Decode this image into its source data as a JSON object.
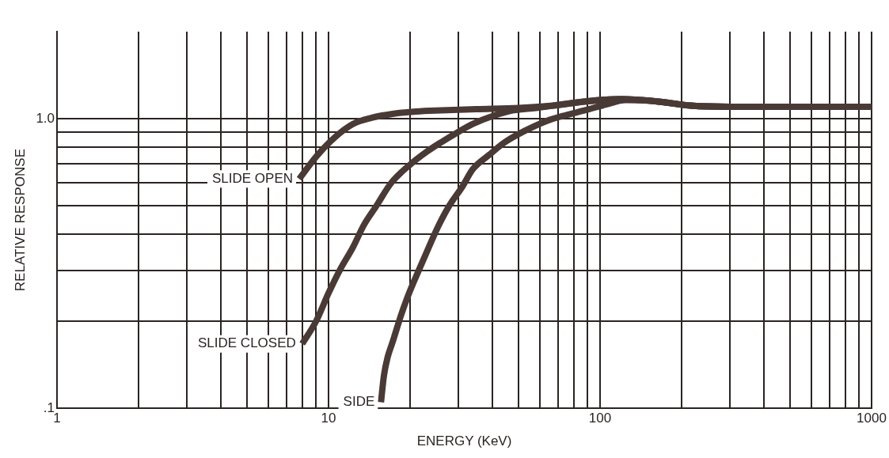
{
  "chart_data": {
    "type": "line",
    "xlabel": "ENERGY (KeV)",
    "ylabel": "RELATIVE RESPONSE",
    "log": "xy",
    "grid": true,
    "legend": false,
    "marker": "none",
    "line_style": "solid",
    "xlim": [
      1,
      1000
    ],
    "ylim": [
      0.1,
      2
    ],
    "xticks": [
      1,
      {
        "value": 2,
        "label": null
      },
      {
        "value": 3,
        "label": null
      },
      {
        "value": 4,
        "label": null
      },
      {
        "value": 5,
        "label": null
      },
      {
        "value": 6,
        "label": null
      },
      {
        "value": 7,
        "label": null
      },
      {
        "value": 8,
        "label": null
      },
      {
        "value": 9,
        "label": null
      },
      10,
      {
        "value": 20,
        "label": null
      },
      {
        "value": 30,
        "label": null
      },
      {
        "value": 40,
        "label": null
      },
      {
        "value": 50,
        "label": null
      },
      {
        "value": 60,
        "label": null
      },
      {
        "value": 70,
        "label": null
      },
      {
        "value": 80,
        "label": null
      },
      {
        "value": 90,
        "label": null
      },
      100,
      {
        "value": 200,
        "label": null
      },
      {
        "value": 300,
        "label": null
      },
      {
        "value": 400,
        "label": null
      },
      {
        "value": 500,
        "label": null
      },
      {
        "value": 600,
        "label": null
      },
      {
        "value": 700,
        "label": null
      },
      {
        "value": 800,
        "label": null
      },
      {
        "value": 900,
        "label": null
      },
      1000
    ],
    "yticks": [
      {
        "value": 0.1,
        "label": ".1"
      },
      {
        "value": 0.2,
        "label": null
      },
      {
        "value": 0.3,
        "label": null
      },
      {
        "value": 0.4,
        "label": null
      },
      {
        "value": 0.5,
        "label": null
      },
      {
        "value": 0.6,
        "label": null
      },
      {
        "value": 0.7,
        "label": null
      },
      {
        "value": 0.8,
        "label": null
      },
      {
        "value": 0.9,
        "label": null
      },
      {
        "value": 1,
        "label": "1.0"
      }
    ],
    "series": [
      {
        "name": "SLIDE OPEN",
        "color": "#4a3a36",
        "x": [
          7.8,
          9,
          10.5,
          12.3,
          14.5,
          17.2,
          21,
          26,
          35,
          50,
          67,
          90,
          120,
          160,
          216,
          300,
          370,
          500,
          700,
          1000
        ],
        "values": [
          0.62,
          0.74,
          0.86,
          0.96,
          1.01,
          1.04,
          1.06,
          1.07,
          1.08,
          1.09,
          1.11,
          1.15,
          1.17,
          1.15,
          1.11,
          1.1,
          1.1,
          1.1,
          1.1,
          1.1
        ]
      },
      {
        "name": "SLIDE CLOSED",
        "color": "#4a3a36",
        "x": [
          8,
          9,
          10,
          11,
          12.3,
          13.5,
          15,
          17,
          19.8,
          23,
          26,
          30,
          34,
          40,
          48,
          58,
          67,
          90,
          120,
          160,
          216,
          300,
          370,
          500,
          700,
          1000
        ],
        "values": [
          0.167,
          0.2,
          0.25,
          0.3,
          0.36,
          0.43,
          0.5,
          0.6,
          0.69,
          0.77,
          0.83,
          0.9,
          0.96,
          1.02,
          1.07,
          1.09,
          1.11,
          1.15,
          1.17,
          1.15,
          1.11,
          1.1,
          1.1,
          1.1,
          1.1,
          1.1
        ]
      },
      {
        "name": "SIDE",
        "color": "#4a3a36",
        "x": [
          15.6,
          16,
          16.5,
          17.2,
          18.5,
          19.8,
          21.5,
          23.4,
          25.5,
          27.8,
          31,
          34,
          39,
          44.6,
          53,
          63,
          75,
          88,
          105,
          124,
          160,
          216,
          300,
          370,
          500,
          700,
          1000
        ],
        "values": [
          0.105,
          0.13,
          0.15,
          0.169,
          0.21,
          0.25,
          0.3,
          0.36,
          0.43,
          0.5,
          0.58,
          0.67,
          0.75,
          0.83,
          0.91,
          0.98,
          1.03,
          1.07,
          1.12,
          1.16,
          1.15,
          1.11,
          1.1,
          1.1,
          1.1,
          1.1,
          1.1
        ]
      }
    ]
  }
}
